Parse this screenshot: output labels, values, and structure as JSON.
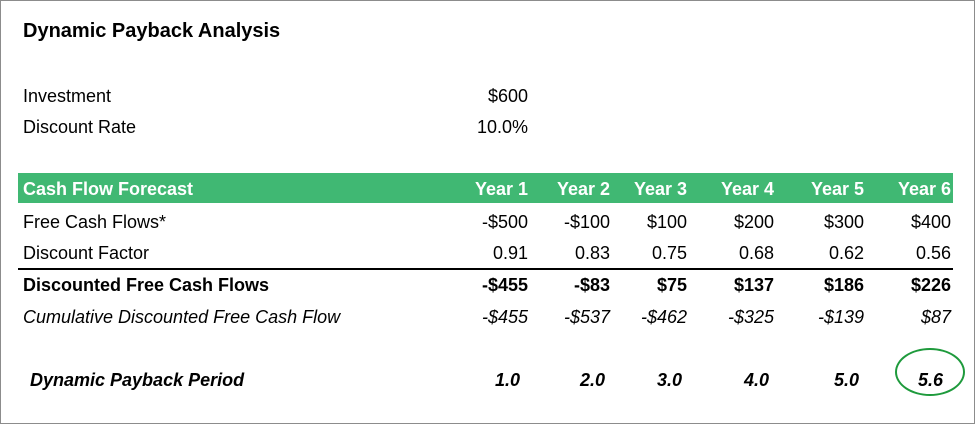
{
  "title": "Dynamic Payback Analysis",
  "inputs": {
    "investment_label": "Investment",
    "investment_value": "$600",
    "discount_label": "Discount Rate",
    "discount_value": "10.0%"
  },
  "table": {
    "header_label": "Cash Flow Forecast",
    "years": [
      "Year 1",
      "Year 2",
      "Year 3",
      "Year 4",
      "Year 5",
      "Year 6"
    ],
    "rows": [
      {
        "label": "Free Cash Flows*",
        "values": [
          "-$500",
          "-$100",
          "$100",
          "$200",
          "$300",
          "$400"
        ]
      },
      {
        "label": "Discount Factor",
        "values": [
          "0.91",
          "0.83",
          "0.75",
          "0.68",
          "0.62",
          "0.56"
        ]
      },
      {
        "label": "Discounted Free Cash Flows",
        "values": [
          "-$455",
          "-$83",
          "$75",
          "$137",
          "$186",
          "$226"
        ]
      },
      {
        "label": "Cumulative Discounted Free Cash Flow",
        "values": [
          "-$455",
          "-$537",
          "-$462",
          "-$325",
          "-$139",
          "$87"
        ]
      }
    ],
    "payback": {
      "label": "Dynamic Payback Period",
      "values": [
        "1.0",
        "2.0",
        "3.0",
        "4.0",
        "5.0",
        "5.6"
      ]
    }
  },
  "highlight_color": "#1e9a3c",
  "header_band_color": "#40b873"
}
